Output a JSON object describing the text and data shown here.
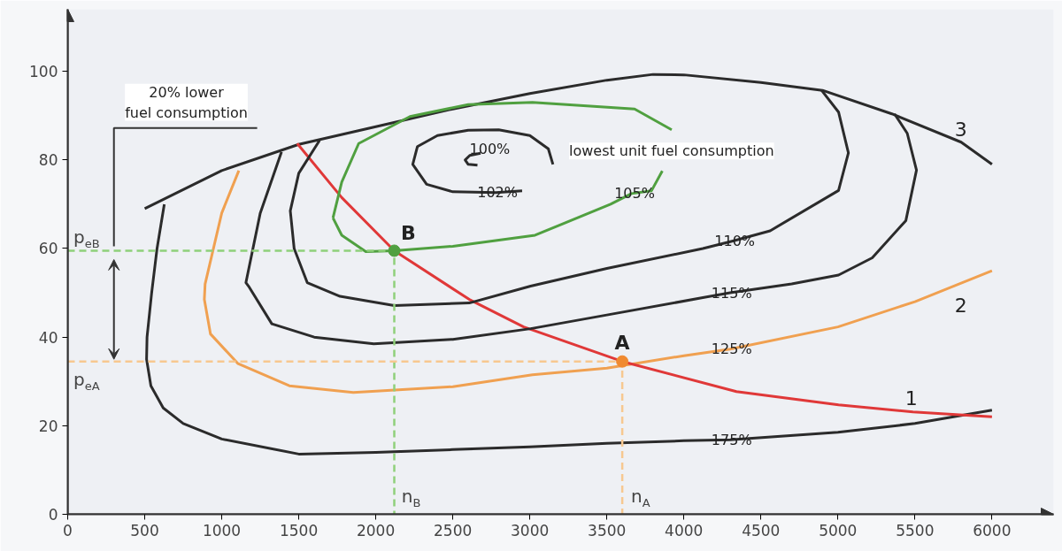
{
  "chart_data": {
    "type": "line",
    "xlim": [
      0,
      6400
    ],
    "ylim": [
      0,
      114
    ],
    "xticks": [
      0,
      500,
      1000,
      1500,
      2000,
      2500,
      3000,
      3500,
      4000,
      4500,
      5000,
      5500,
      6000
    ],
    "yticks": [
      0,
      20,
      40,
      60,
      80,
      100
    ],
    "grid": false,
    "marker": "none",
    "line_style": "solid",
    "series": [
      {
        "color": "#2b2b2b",
        "x": [
          500,
          1000,
          1500,
          2000,
          2500,
          3000,
          3500,
          3800,
          4000,
          4500,
          4900,
          5350,
          5800,
          6000
        ],
        "values": [
          69,
          77.6,
          83.5,
          87.5,
          91.5,
          95,
          98,
          99.3,
          99.2,
          97.5,
          95.7,
          90.4,
          84,
          79
        ]
      },
      {
        "color": "#2b2b2b",
        "x": [
          627,
          580,
          545,
          515,
          512,
          540,
          620,
          750,
          1000,
          1500,
          2000,
          2500,
          3000,
          3500,
          4000,
          4300,
          5000,
          5500,
          6000
        ],
        "values": [
          70,
          60,
          50,
          40,
          35,
          29,
          24,
          20.5,
          17,
          13.6,
          14,
          14.6,
          15.2,
          16,
          16.6,
          16.8,
          18.5,
          20.5,
          23.5
        ]
      },
      {
        "color": "#f0a050",
        "x": [
          1111,
          1000,
          892,
          887,
          927,
          1106,
          1439,
          1854,
          2500,
          3017,
          3500,
          4000,
          4300,
          5000,
          5500,
          6000
        ],
        "values": [
          77.6,
          68,
          52,
          48.5,
          40.7,
          34,
          29,
          27.5,
          28.8,
          31.5,
          33,
          35.8,
          37.3,
          42.3,
          48,
          55
        ]
      },
      {
        "color": "#e03838",
        "x": [
          1490,
          1779,
          2120,
          2607,
          2960,
          3600,
          4341,
          5004,
          5487,
          6000
        ],
        "values": [
          83.7,
          71.5,
          59.5,
          48.5,
          42.3,
          34.5,
          27.7,
          24.7,
          23.1,
          22
        ]
      },
      {
        "color": "#2b2b2b",
        "x": [
          1388,
          1250,
          1157,
          1174,
          1325,
          1600,
          1987,
          2500,
          3005,
          3500,
          4123,
          4300,
          4700,
          5004,
          5223,
          5441,
          5510,
          5450,
          5367
        ],
        "values": [
          81.8,
          68,
          52.3,
          51.5,
          43,
          40,
          38.5,
          39.5,
          41.9,
          45,
          48.9,
          50,
          52,
          54,
          57.9,
          66.3,
          77.7,
          86,
          90.4
        ]
      },
      {
        "color": "#2b2b2b",
        "x": [
          1635,
          1500,
          1445,
          1470,
          1555,
          1768,
          2120,
          2607,
          3005,
          3500,
          4123,
          4318,
          4560,
          5004,
          5068,
          5004,
          4894
        ],
        "values": [
          84.4,
          77,
          68.5,
          60,
          52.3,
          49.2,
          47.1,
          47.7,
          51.5,
          55.5,
          60,
          61.7,
          64,
          73.1,
          81.6,
          90.8,
          95.7
        ]
      },
      {
        "color": "#50a040",
        "x": [
          1722,
          1779,
          1889,
          2222,
          2600,
          3017,
          3680,
          3921
        ],
        "values": [
          66.9,
          75,
          83.7,
          89.8,
          92.5,
          93,
          91.5,
          86.8
        ]
      },
      {
        "color": "#50a040",
        "x": [
          1722,
          1779,
          1935,
          2120,
          2500,
          3034,
          3524,
          3660,
          3789,
          3860
        ],
        "values": [
          66.9,
          63,
          59.3,
          59.5,
          60.5,
          63,
          70,
          72.4,
          73,
          77.5
        ]
      },
      {
        "color": "#2b2b2b",
        "x": [
          2950,
          2780,
          2500,
          2330,
          2240,
          2270,
          2400,
          2600,
          2798,
          3000,
          3120,
          3150
        ],
        "values": [
          73,
          72.6,
          72.8,
          74.5,
          79,
          83,
          85.5,
          86.7,
          86.8,
          85.5,
          82.5,
          79
        ]
      },
      {
        "color": "#2b2b2b",
        "x": [
          2680,
          2610,
          2580,
          2600,
          2660
        ],
        "values": [
          81.5,
          81,
          80,
          79,
          78.8
        ]
      },
      {
        "color": "#8fd07a",
        "line_style": "dashed",
        "x": [
          0,
          2120,
          2120
        ],
        "values": [
          59.5,
          59.5,
          0
        ]
      },
      {
        "color": "#f7c890",
        "line_style": "dashed",
        "x": [
          0,
          3600,
          3600
        ],
        "values": [
          34.5,
          34.5,
          0
        ]
      },
      {
        "type": "scatter",
        "marker": "circle",
        "color": "#50a040",
        "x": [
          2120
        ],
        "values": [
          59.5
        ]
      },
      {
        "type": "scatter",
        "marker": "circle",
        "color": "#f08a30",
        "x": [
          3600
        ],
        "values": [
          34.5
        ]
      }
    ],
    "annotations": [
      "20% lower\nfuel consumption",
      "100%",
      "lowest unit fuel consumption",
      {
        "text": "102%",
        "x": 2790,
        "y": 72.6
      },
      {
        "text": "105%",
        "x": 3680,
        "y": 72.4
      },
      {
        "text": "110%",
        "x": 4330,
        "y": 61.7
      },
      {
        "text": "115%",
        "x": 4310,
        "y": 50
      },
      {
        "text": "125%",
        "x": 4310,
        "y": 37.3
      },
      {
        "text": "175%",
        "x": 4310,
        "y": 16.8
      },
      "1",
      "2",
      "3",
      "A",
      "B",
      "p$_{eB}$",
      "p$_{eA}$",
      "n$_{B}$",
      "n$_{A}$"
    ]
  }
}
